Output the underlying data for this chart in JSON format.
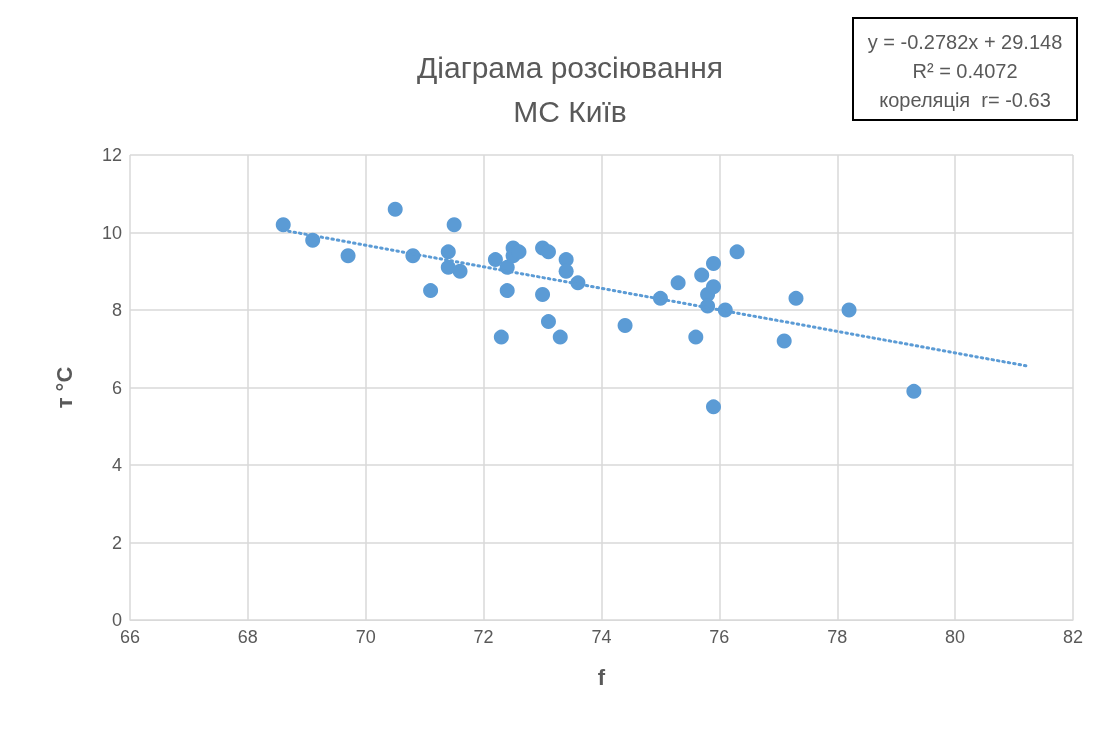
{
  "chart_data": {
    "type": "scatter",
    "title": "Діаграма розсіювання\nМС Київ",
    "xlabel": "f",
    "ylabel": "т °C",
    "annotations": [
      "y = -0.2782x + 29.148",
      "R² = 0.4072",
      "кореляція  r= -0.63"
    ],
    "xlim": [
      66,
      82
    ],
    "xticks": [
      66,
      68,
      70,
      72,
      74,
      76,
      78,
      80,
      82
    ],
    "ylim": [
      0,
      12
    ],
    "yticks": [
      0,
      2,
      4,
      6,
      8,
      10,
      12
    ],
    "grid": true,
    "series": [
      {
        "color": "#5b9bd5",
        "marker": "circle",
        "x": [
          68.6,
          69.1,
          69.7,
          70.5,
          70.8,
          71.1,
          71.4,
          71.4,
          71.5,
          71.6,
          72.2,
          72.3,
          72.4,
          72.4,
          72.5,
          72.5,
          72.6,
          73.0,
          73.0,
          73.1,
          73.1,
          73.3,
          73.4,
          73.4,
          73.6,
          74.4,
          75.0,
          75.3,
          75.6,
          75.7,
          75.8,
          75.8,
          75.9,
          75.9,
          75.9,
          76.1,
          76.3,
          77.1,
          77.3,
          78.2,
          79.3
        ],
        "values": [
          10.2,
          9.8,
          9.4,
          10.6,
          9.4,
          8.5,
          9.5,
          9.1,
          10.2,
          9.0,
          9.3,
          7.3,
          9.1,
          8.5,
          9.6,
          9.4,
          9.5,
          9.6,
          8.4,
          9.5,
          7.7,
          7.3,
          9.3,
          9.0,
          8.7,
          7.6,
          8.3,
          8.7,
          7.3,
          8.9,
          8.4,
          8.1,
          9.2,
          8.6,
          5.5,
          8.0,
          9.5,
          7.2,
          8.3,
          8.0,
          5.9
        ]
      },
      {
        "type": "line",
        "color": "#5b9bd5",
        "marker": "none",
        "line_style": "dotted",
        "x": [
          68.6,
          81.2
        ],
        "values": [
          10.06,
          6.56
        ]
      }
    ]
  }
}
